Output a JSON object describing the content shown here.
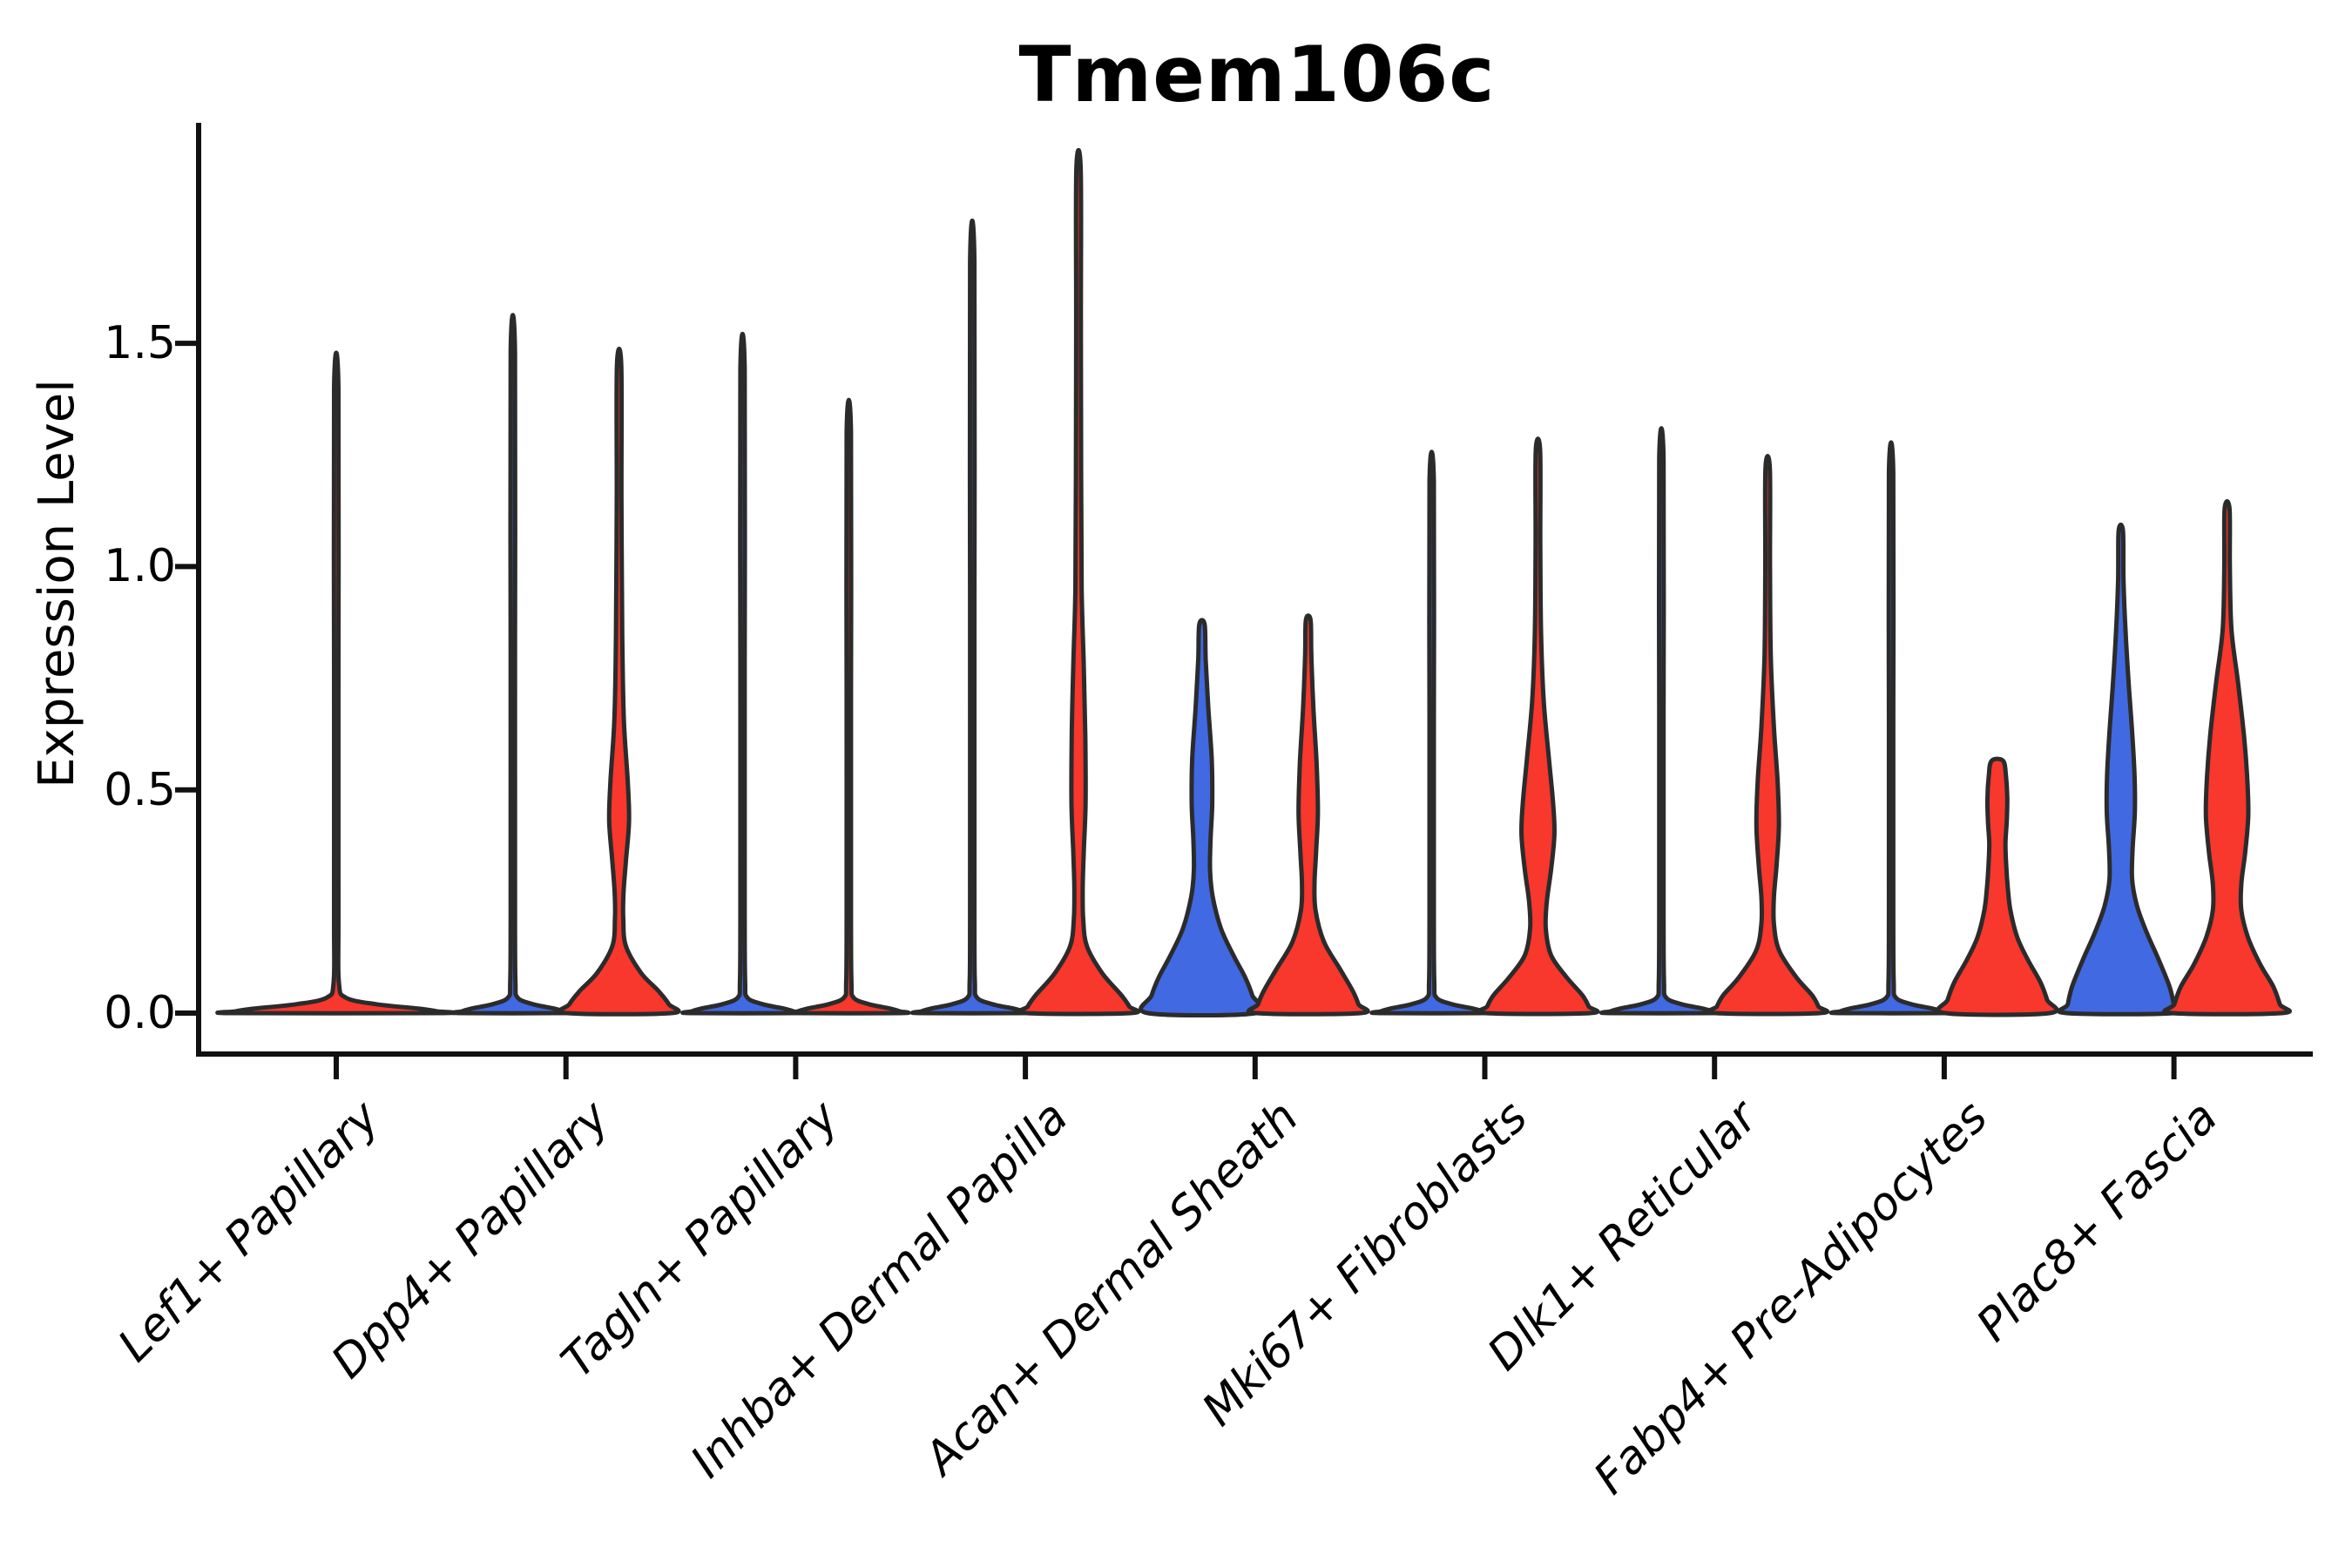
{
  "title": "Tmem106c",
  "chart_data": {
    "type": "violin",
    "title": "Tmem106c",
    "xlabel": "",
    "ylabel": "Expression Level",
    "ylim": [
      -0.09,
      1.99
    ],
    "grid": false,
    "legend": "none",
    "yticks": [
      0.0,
      0.5,
      1.0,
      1.5
    ],
    "ytick_labels": [
      "0.0",
      "0.5",
      "1.0",
      "1.5"
    ],
    "categories": [
      "Lef1+ Papillary",
      "Dpp4+ Papillary",
      "Tagln+ Papillary",
      "Inhba+ Dermal Papilla",
      "Acan+ Dermal Sheath",
      "Mki67+ Fibroblasts",
      "Dlk1+ Reticular",
      "Fabp4+ Pre-Adipocytes",
      "Plac8+ Fascia"
    ],
    "group_colors": {
      "left": "#4169E1",
      "right": "#F8372D"
    },
    "outline_color": "#2B2B2B",
    "axis_color": "#111111",
    "violins": [
      {
        "cat": 0,
        "group": "single",
        "color": "#F8372D",
        "hw": 119,
        "max_expression": 1.4,
        "shape": "flat-spike"
      },
      {
        "cat": 1,
        "group": "left",
        "color": "#4169E1",
        "hw": 60,
        "max_expression": 1.48,
        "shape": "flat-spike"
      },
      {
        "cat": 1,
        "group": "right",
        "color": "#F8372D",
        "hw": 60,
        "max_expression": 1.45,
        "shape": "bulged",
        "profile": [
          [
            1.45,
            0.042
          ],
          [
            1.15,
            0.045
          ],
          [
            0.85,
            0.06
          ],
          [
            0.66,
            0.09
          ],
          [
            0.52,
            0.165
          ],
          [
            0.43,
            0.19
          ],
          [
            0.34,
            0.13
          ],
          [
            0.27,
            0.085
          ],
          [
            0.21,
            0.08
          ],
          [
            0.15,
            0.13
          ],
          [
            0.09,
            0.42
          ],
          [
            0.05,
            0.75
          ],
          [
            0.02,
            0.95
          ],
          [
            0,
            1
          ]
        ]
      },
      {
        "cat": 2,
        "group": "left",
        "color": "#4169E1",
        "hw": 60,
        "max_expression": 1.44,
        "shape": "flat-spike"
      },
      {
        "cat": 2,
        "group": "right",
        "color": "#F8372D",
        "hw": 60,
        "max_expression": 1.3,
        "shape": "flat-spike"
      },
      {
        "cat": 3,
        "group": "left",
        "color": "#4169E1",
        "hw": 60,
        "max_expression": 1.68,
        "shape": "flat-spike"
      },
      {
        "cat": 3,
        "group": "right",
        "color": "#F8372D",
        "hw": 60,
        "max_expression": 1.89,
        "shape": "bulged",
        "profile": [
          [
            1.89,
            0.042
          ],
          [
            1.55,
            0.045
          ],
          [
            1.2,
            0.05
          ],
          [
            0.95,
            0.06
          ],
          [
            0.78,
            0.1
          ],
          [
            0.62,
            0.13
          ],
          [
            0.47,
            0.135
          ],
          [
            0.36,
            0.1
          ],
          [
            0.28,
            0.08
          ],
          [
            0.21,
            0.09
          ],
          [
            0.15,
            0.16
          ],
          [
            0.09,
            0.45
          ],
          [
            0.04,
            0.82
          ],
          [
            0.015,
            0.97
          ],
          [
            0,
            1
          ]
        ]
      },
      {
        "cat": 4,
        "group": "left",
        "color": "#4169E1",
        "hw": 62,
        "max_expression": 0.87,
        "shape": "bulged",
        "profile": [
          [
            0.87,
            0.05
          ],
          [
            0.79,
            0.07
          ],
          [
            0.68,
            0.12
          ],
          [
            0.57,
            0.18
          ],
          [
            0.47,
            0.19
          ],
          [
            0.39,
            0.16
          ],
          [
            0.32,
            0.15
          ],
          [
            0.26,
            0.2
          ],
          [
            0.19,
            0.35
          ],
          [
            0.13,
            0.58
          ],
          [
            0.08,
            0.8
          ],
          [
            0.04,
            0.93
          ],
          [
            0,
            1
          ]
        ]
      },
      {
        "cat": 4,
        "group": "right",
        "color": "#F8372D",
        "hw": 60,
        "max_expression": 0.88,
        "shape": "bulged",
        "profile": [
          [
            0.88,
            0.045
          ],
          [
            0.8,
            0.06
          ],
          [
            0.68,
            0.1
          ],
          [
            0.56,
            0.16
          ],
          [
            0.45,
            0.185
          ],
          [
            0.36,
            0.15
          ],
          [
            0.29,
            0.12
          ],
          [
            0.23,
            0.14
          ],
          [
            0.16,
            0.3
          ],
          [
            0.1,
            0.6
          ],
          [
            0.05,
            0.85
          ],
          [
            0.02,
            0.96
          ],
          [
            0,
            1
          ]
        ]
      },
      {
        "cat": 5,
        "group": "left",
        "color": "#4169E1",
        "hw": 60,
        "max_expression": 1.19,
        "shape": "flat-spike"
      },
      {
        "cat": 5,
        "group": "right",
        "color": "#F8372D",
        "hw": 60,
        "max_expression": 1.26,
        "shape": "bulged",
        "profile": [
          [
            1.26,
            0.042
          ],
          [
            1.05,
            0.045
          ],
          [
            0.85,
            0.06
          ],
          [
            0.7,
            0.11
          ],
          [
            0.57,
            0.21
          ],
          [
            0.47,
            0.29
          ],
          [
            0.4,
            0.315
          ],
          [
            0.32,
            0.25
          ],
          [
            0.25,
            0.17
          ],
          [
            0.19,
            0.15
          ],
          [
            0.13,
            0.25
          ],
          [
            0.08,
            0.55
          ],
          [
            0.04,
            0.85
          ],
          [
            0.015,
            0.97
          ],
          [
            0,
            1
          ]
        ]
      },
      {
        "cat": 6,
        "group": "left",
        "color": "#4169E1",
        "hw": 60,
        "max_expression": 1.24,
        "shape": "flat-spike"
      },
      {
        "cat": 6,
        "group": "right",
        "color": "#F8372D",
        "hw": 60,
        "max_expression": 1.22,
        "shape": "bulged",
        "profile": [
          [
            1.22,
            0.042
          ],
          [
            1.0,
            0.045
          ],
          [
            0.8,
            0.06
          ],
          [
            0.64,
            0.12
          ],
          [
            0.52,
            0.19
          ],
          [
            0.42,
            0.215
          ],
          [
            0.33,
            0.17
          ],
          [
            0.26,
            0.12
          ],
          [
            0.2,
            0.12
          ],
          [
            0.14,
            0.22
          ],
          [
            0.08,
            0.55
          ],
          [
            0.04,
            0.85
          ],
          [
            0.015,
            0.97
          ],
          [
            0,
            1
          ]
        ]
      },
      {
        "cat": 7,
        "group": "left",
        "color": "#4169E1",
        "hw": 60,
        "max_expression": 1.21,
        "shape": "flat-spike"
      },
      {
        "cat": 7,
        "group": "right",
        "color": "#F8372D",
        "hw": 60,
        "max_expression": 0.57,
        "shape": "bulged",
        "profile": [
          [
            0.565,
            0.11
          ],
          [
            0.53,
            0.165
          ],
          [
            0.48,
            0.19
          ],
          [
            0.43,
            0.18
          ],
          [
            0.38,
            0.155
          ],
          [
            0.33,
            0.17
          ],
          [
            0.28,
            0.2
          ],
          [
            0.23,
            0.25
          ],
          [
            0.17,
            0.38
          ],
          [
            0.12,
            0.58
          ],
          [
            0.07,
            0.82
          ],
          [
            0.03,
            0.95
          ],
          [
            0,
            1
          ]
        ]
      },
      {
        "cat": 8,
        "group": "left",
        "color": "#4169E1",
        "hw": 62,
        "max_expression": 1.08,
        "shape": "bulged",
        "profile": [
          [
            1.08,
            0.04
          ],
          [
            0.97,
            0.05
          ],
          [
            0.85,
            0.09
          ],
          [
            0.73,
            0.15
          ],
          [
            0.63,
            0.21
          ],
          [
            0.53,
            0.255
          ],
          [
            0.45,
            0.26
          ],
          [
            0.37,
            0.22
          ],
          [
            0.3,
            0.21
          ],
          [
            0.24,
            0.3
          ],
          [
            0.18,
            0.48
          ],
          [
            0.12,
            0.7
          ],
          [
            0.06,
            0.9
          ],
          [
            0.02,
            0.98
          ],
          [
            0,
            1
          ]
        ]
      },
      {
        "cat": 8,
        "group": "right",
        "color": "#F8372D",
        "hw": 63,
        "max_expression": 1.13,
        "shape": "bulged",
        "profile": [
          [
            1.13,
            0.045
          ],
          [
            1.0,
            0.05
          ],
          [
            0.86,
            0.08
          ],
          [
            0.74,
            0.2
          ],
          [
            0.62,
            0.31
          ],
          [
            0.52,
            0.37
          ],
          [
            0.44,
            0.385
          ],
          [
            0.36,
            0.33
          ],
          [
            0.29,
            0.26
          ],
          [
            0.23,
            0.26
          ],
          [
            0.17,
            0.38
          ],
          [
            0.11,
            0.6
          ],
          [
            0.06,
            0.84
          ],
          [
            0.02,
            0.96
          ],
          [
            0,
            1
          ]
        ]
      }
    ]
  }
}
